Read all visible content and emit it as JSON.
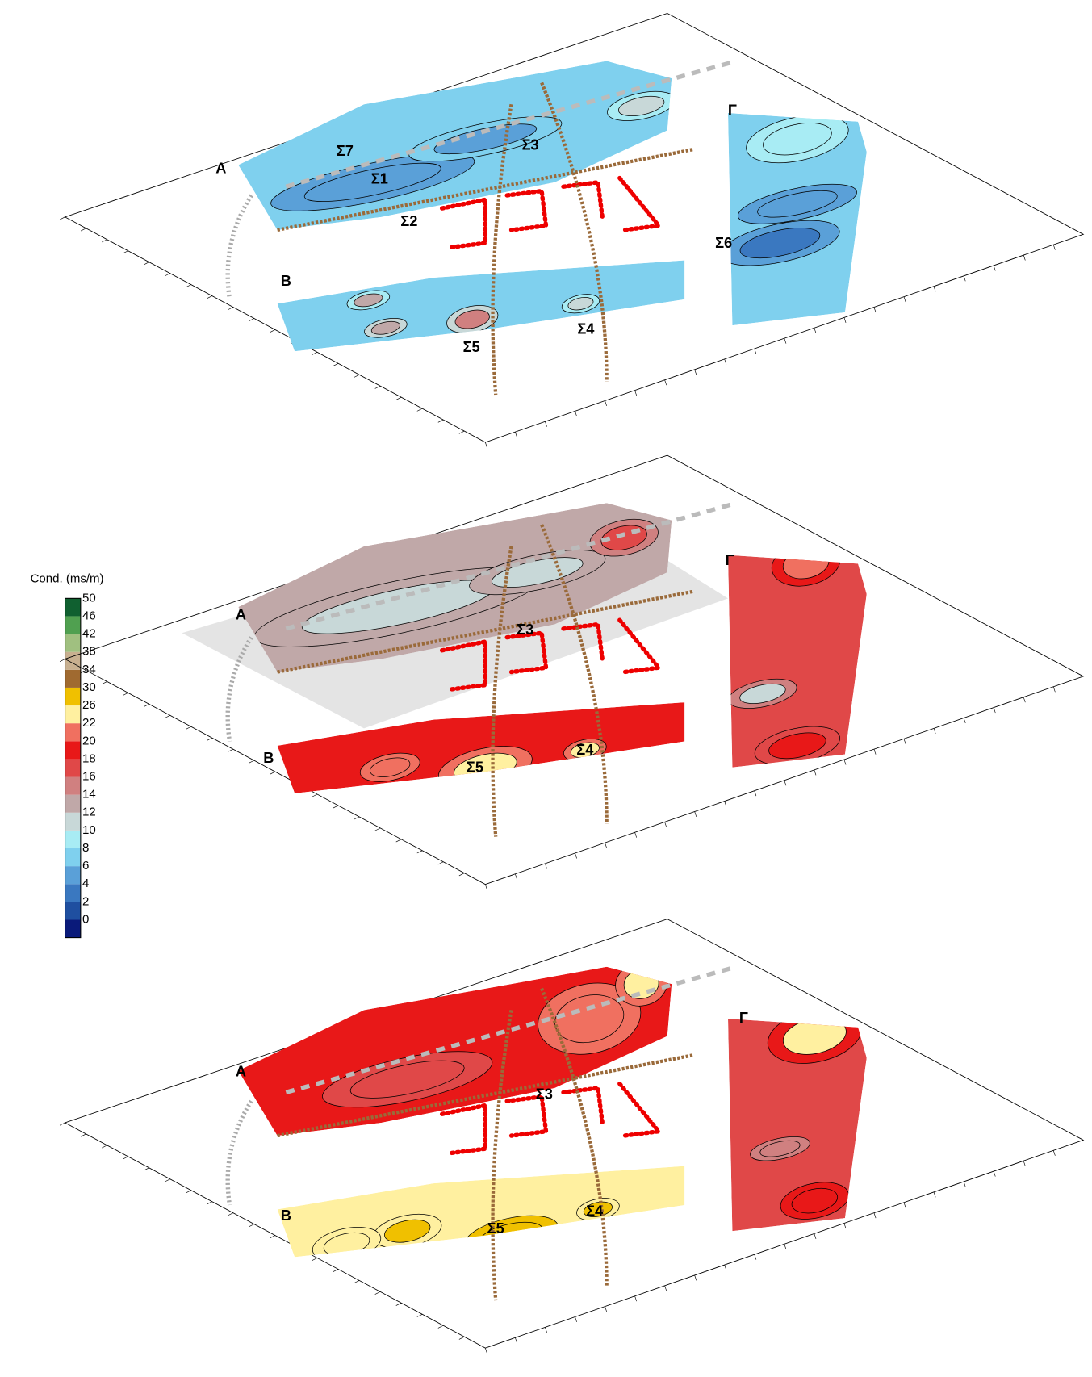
{
  "legend": {
    "title": "Cond. (ms/m)",
    "ticks": [
      0,
      2,
      4,
      6,
      8,
      10,
      12,
      14,
      16,
      18,
      20,
      22,
      26,
      30,
      34,
      38,
      42,
      46,
      50
    ],
    "colors": [
      "#0a1a7a",
      "#1f4fa0",
      "#3a78c0",
      "#5aa0d8",
      "#7fd0ee",
      "#a8ecf4",
      "#c8d8d8",
      "#c0a8a8",
      "#d08080",
      "#e04848",
      "#e81818",
      "#f07060",
      "#fff0a0",
      "#f0c000",
      "#a06a30",
      "#c8b090",
      "#a0c080",
      "#50a050",
      "#106030"
    ]
  },
  "panels": [
    {
      "labels": [
        {
          "text": "A"
        },
        {
          "text": "B"
        },
        {
          "text": "Γ"
        },
        {
          "text": "Σ7"
        },
        {
          "text": "Σ1"
        },
        {
          "text": "Σ2"
        },
        {
          "text": "Σ3"
        },
        {
          "text": "Σ5"
        },
        {
          "text": "Σ4"
        },
        {
          "text": "Σ6"
        }
      ]
    },
    {
      "labels": [
        {
          "text": "A"
        },
        {
          "text": "B"
        },
        {
          "text": "Γ"
        },
        {
          "text": "Σ3"
        },
        {
          "text": "Σ5"
        },
        {
          "text": "Σ4"
        }
      ]
    },
    {
      "labels": [
        {
          "text": "A"
        },
        {
          "text": "B"
        },
        {
          "text": "Γ"
        },
        {
          "text": "Σ3"
        },
        {
          "text": "Σ5"
        },
        {
          "text": "Σ4"
        }
      ]
    }
  ]
}
